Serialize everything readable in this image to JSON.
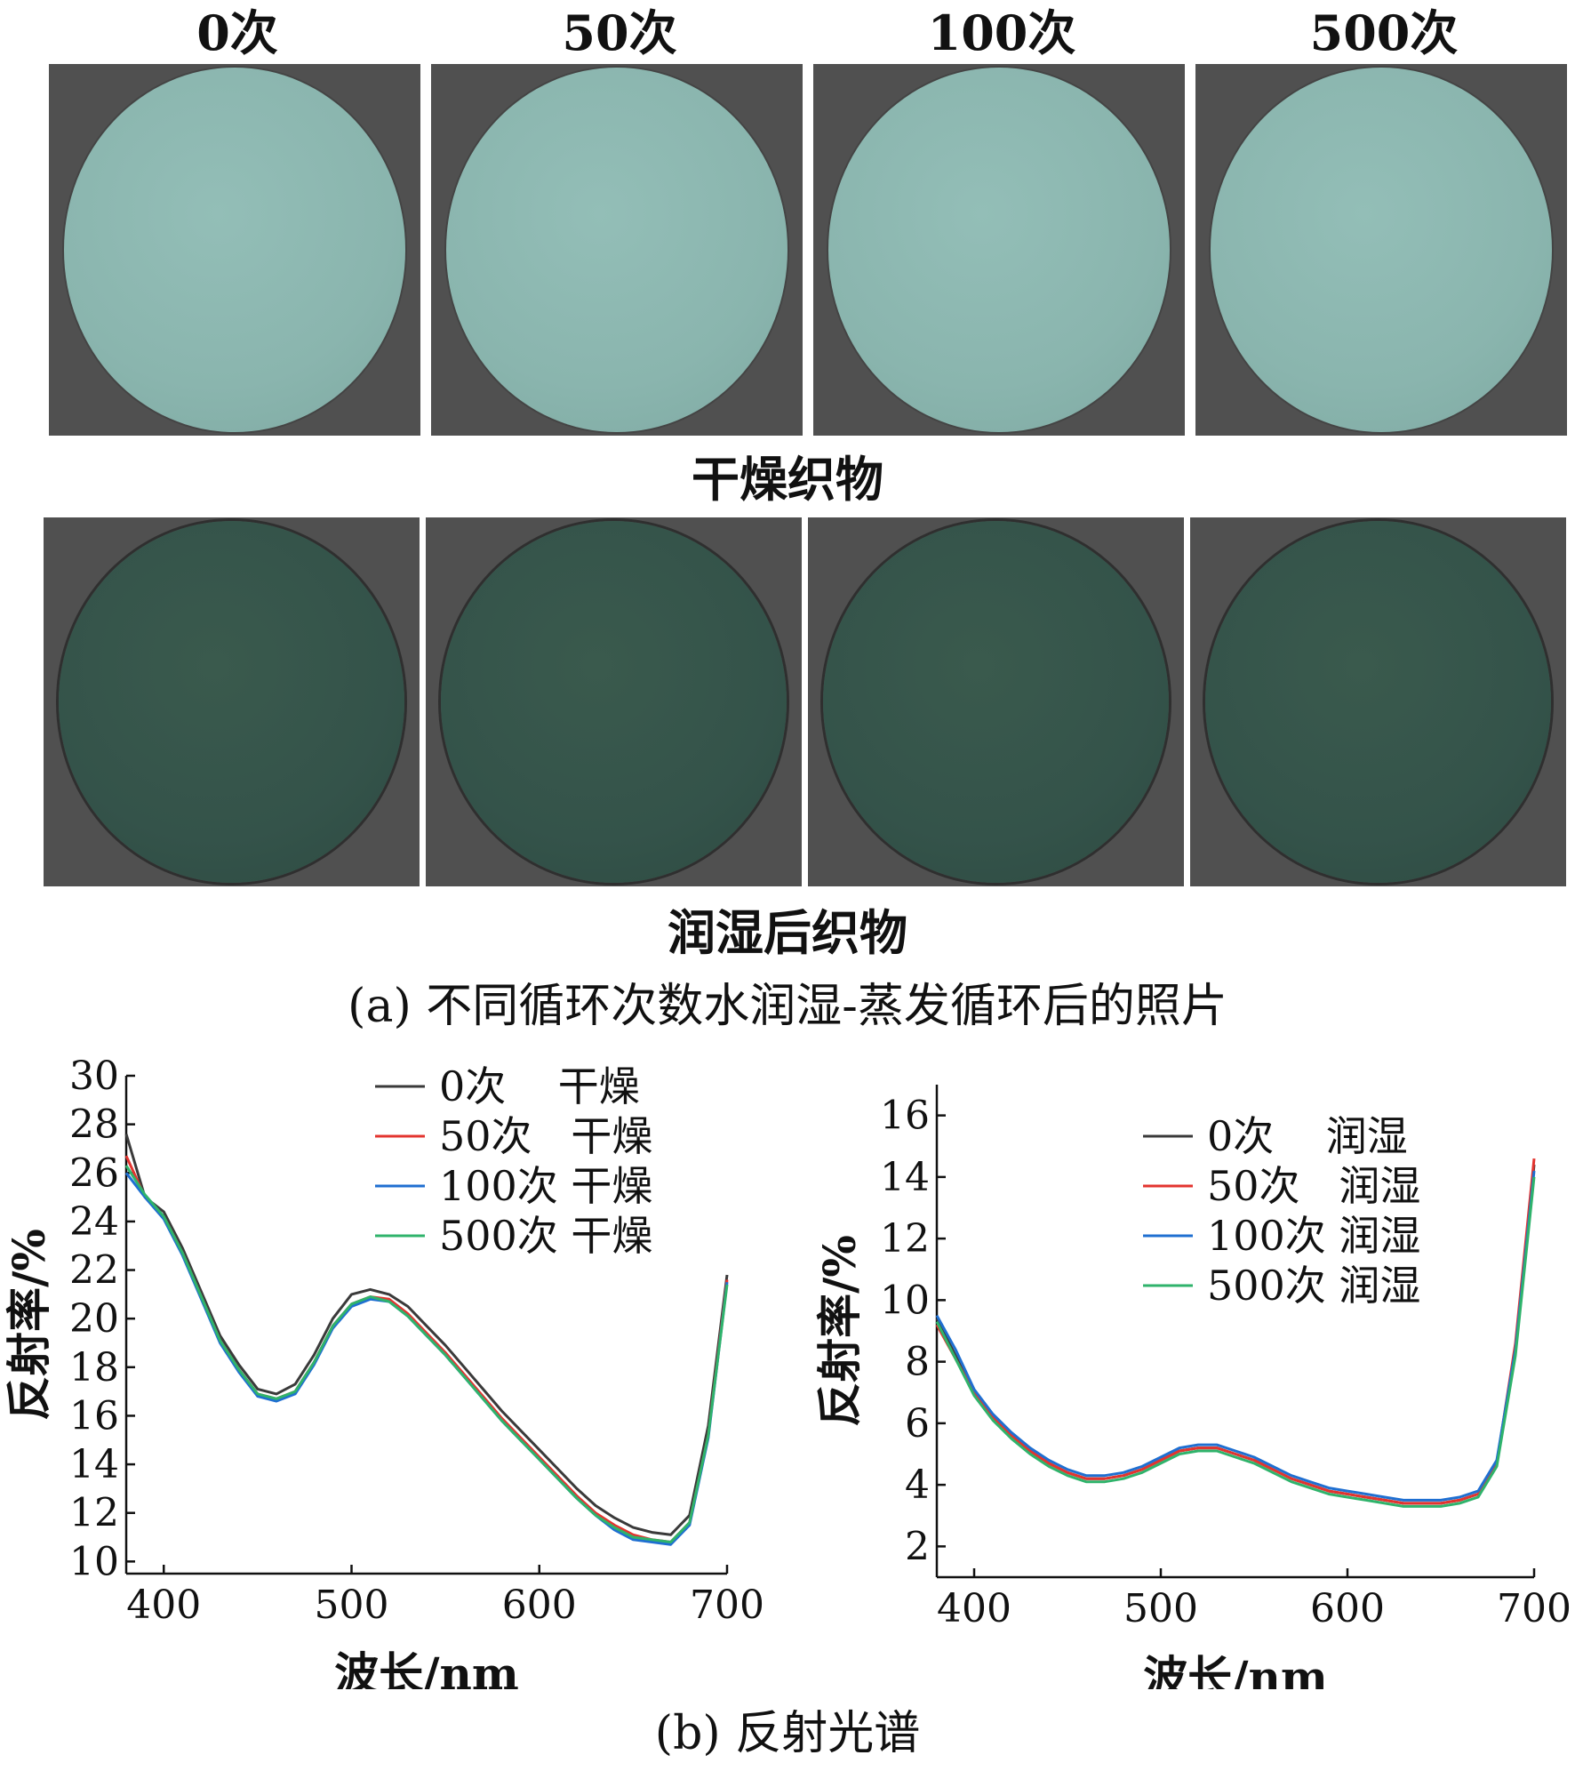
{
  "photos": {
    "columns": [
      "0次",
      "50次",
      "100次",
      "500次"
    ],
    "dry_label": "干燥织物",
    "wet_label": "润湿后织物",
    "caption": "(a) 不同循环次数水润湿-蒸发循环后的照片",
    "dry_color": "#8ab5ae",
    "wet_color": "#34534a",
    "background_color": "#505050"
  },
  "spectra_caption": "(b) 反射光谱",
  "chart_data": [
    {
      "type": "line",
      "xlabel": "波长/nm",
      "ylabel": "反射率/%",
      "xlim": [
        380,
        700
      ],
      "ylim": [
        9.5,
        30
      ],
      "xticks": [
        400,
        500,
        600,
        700
      ],
      "yticks": [
        10,
        12,
        14,
        16,
        18,
        20,
        22,
        24,
        26,
        28,
        30
      ],
      "legend_position": "top-right",
      "x": [
        380,
        390,
        400,
        410,
        420,
        430,
        440,
        450,
        460,
        470,
        480,
        490,
        500,
        510,
        520,
        530,
        540,
        550,
        560,
        570,
        580,
        590,
        600,
        610,
        620,
        630,
        640,
        650,
        660,
        670,
        680,
        690,
        700
      ],
      "series": [
        {
          "name": "0次    干燥",
          "color": "#3a3a3a",
          "values": [
            27.6,
            25.0,
            24.4,
            22.9,
            21.1,
            19.3,
            18.1,
            17.1,
            16.9,
            17.3,
            18.5,
            20.0,
            21.0,
            21.2,
            21.0,
            20.5,
            19.7,
            18.9,
            18.0,
            17.1,
            16.2,
            15.4,
            14.6,
            13.8,
            13.0,
            12.3,
            11.8,
            11.4,
            11.2,
            11.1,
            11.9,
            15.6,
            21.8
          ]
        },
        {
          "name": "50次   干燥",
          "color": "#e3342f",
          "values": [
            26.7,
            25.0,
            24.2,
            22.7,
            20.9,
            19.1,
            17.9,
            16.9,
            16.7,
            17.0,
            18.2,
            19.7,
            20.6,
            20.9,
            20.8,
            20.2,
            19.4,
            18.6,
            17.7,
            16.8,
            15.9,
            15.1,
            14.3,
            13.5,
            12.7,
            12.0,
            11.5,
            11.1,
            10.9,
            10.8,
            11.6,
            15.2,
            21.6
          ]
        },
        {
          "name": "100次 干燥",
          "color": "#1f6fd1",
          "values": [
            26.0,
            25.0,
            24.1,
            22.6,
            20.8,
            19.0,
            17.8,
            16.8,
            16.6,
            16.9,
            18.1,
            19.6,
            20.5,
            20.8,
            20.7,
            20.1,
            19.3,
            18.5,
            17.6,
            16.7,
            15.8,
            15.0,
            14.2,
            13.4,
            12.6,
            11.9,
            11.3,
            10.9,
            10.8,
            10.7,
            11.5,
            15.1,
            21.5
          ]
        },
        {
          "name": "500次 干燥",
          "color": "#2fb36b",
          "values": [
            26.3,
            25.1,
            24.2,
            22.7,
            20.9,
            19.1,
            17.9,
            16.9,
            16.7,
            17.0,
            18.2,
            19.7,
            20.6,
            20.9,
            20.7,
            20.1,
            19.3,
            18.5,
            17.6,
            16.7,
            15.8,
            15.0,
            14.2,
            13.4,
            12.6,
            11.9,
            11.4,
            11.0,
            10.9,
            10.8,
            11.6,
            15.2,
            21.4
          ]
        }
      ]
    },
    {
      "type": "line",
      "xlabel": "波长/nm",
      "ylabel": "反射率/%",
      "xlim": [
        380,
        700
      ],
      "ylim": [
        1,
        17
      ],
      "xticks": [
        400,
        500,
        600,
        700
      ],
      "yticks": [
        2,
        4,
        6,
        8,
        10,
        12,
        14,
        16
      ],
      "legend_position": "top-right",
      "x": [
        380,
        390,
        400,
        410,
        420,
        430,
        440,
        450,
        460,
        470,
        480,
        490,
        500,
        510,
        520,
        530,
        540,
        550,
        560,
        570,
        580,
        590,
        600,
        610,
        620,
        630,
        640,
        650,
        660,
        670,
        680,
        690,
        700
      ],
      "series": [
        {
          "name": "0次    润湿",
          "color": "#3a3a3a",
          "values": [
            9.4,
            8.2,
            7.0,
            6.2,
            5.6,
            5.1,
            4.7,
            4.4,
            4.2,
            4.2,
            4.3,
            4.5,
            4.8,
            5.1,
            5.2,
            5.2,
            5.0,
            4.8,
            4.5,
            4.2,
            4.0,
            3.8,
            3.7,
            3.6,
            3.5,
            3.4,
            3.4,
            3.4,
            3.5,
            3.7,
            4.7,
            8.4,
            14.4
          ]
        },
        {
          "name": "50次   润湿",
          "color": "#e3342f",
          "values": [
            9.2,
            8.1,
            7.0,
            6.2,
            5.6,
            5.1,
            4.7,
            4.4,
            4.2,
            4.2,
            4.3,
            4.5,
            4.8,
            5.1,
            5.2,
            5.2,
            5.0,
            4.8,
            4.5,
            4.2,
            4.0,
            3.8,
            3.7,
            3.6,
            3.5,
            3.4,
            3.4,
            3.4,
            3.5,
            3.7,
            4.7,
            8.6,
            14.6
          ]
        },
        {
          "name": "100次 润湿",
          "color": "#1f6fd1",
          "values": [
            9.5,
            8.4,
            7.1,
            6.3,
            5.7,
            5.2,
            4.8,
            4.5,
            4.3,
            4.3,
            4.4,
            4.6,
            4.9,
            5.2,
            5.3,
            5.3,
            5.1,
            4.9,
            4.6,
            4.3,
            4.1,
            3.9,
            3.8,
            3.7,
            3.6,
            3.5,
            3.5,
            3.5,
            3.6,
            3.8,
            4.8,
            8.4,
            14.2
          ]
        },
        {
          "name": "500次 润湿",
          "color": "#2fb36b",
          "values": [
            9.3,
            8.1,
            6.9,
            6.1,
            5.5,
            5.0,
            4.6,
            4.3,
            4.1,
            4.1,
            4.2,
            4.4,
            4.7,
            5.0,
            5.1,
            5.1,
            4.9,
            4.7,
            4.4,
            4.1,
            3.9,
            3.7,
            3.6,
            3.5,
            3.4,
            3.3,
            3.3,
            3.3,
            3.4,
            3.6,
            4.6,
            8.2,
            14.0
          ]
        }
      ]
    }
  ]
}
